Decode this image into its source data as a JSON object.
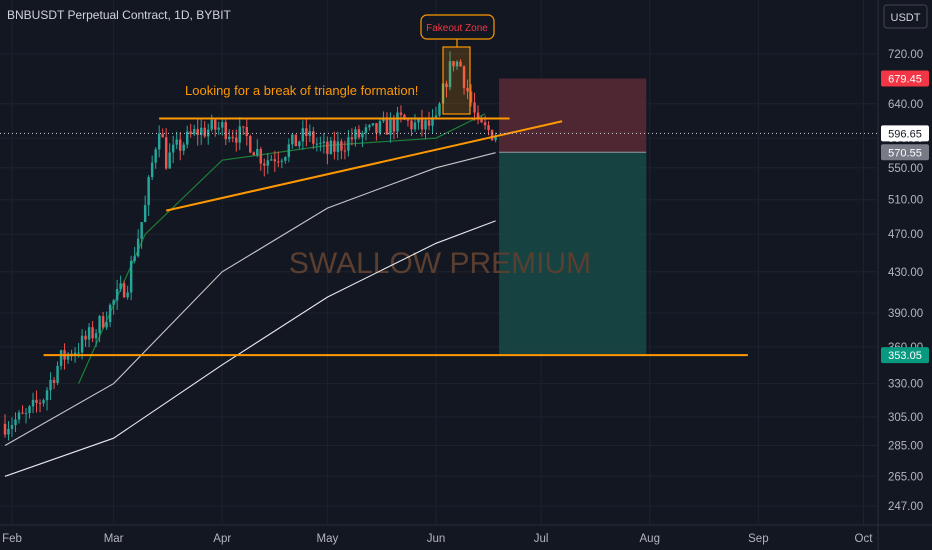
{
  "header": {
    "title": "BNBUSDT Perpetual Contract, 1D, BYBIT",
    "currency_button": "USDT"
  },
  "watermark": "SWALLOW PREMIUM",
  "annotations": {
    "triangle_note": "Looking for a break of triangle formation!",
    "fakeout_label": "Fakeout Zone"
  },
  "colors": {
    "background": "#131722",
    "up_candle": "#26a69a",
    "down_candle": "#ef5350",
    "trendline": "#ff9800",
    "ema": "#1f8a3a",
    "sma_100": "#d9d9d9",
    "sma_200": "#ffffff",
    "stop_zone": "#5b2a35",
    "target_zone": "#174a46",
    "last_price_tag": "#ffffff",
    "stop_tag": "#f23645",
    "entry_tag": "#787b86",
    "target_tag": "#089981"
  },
  "chart_data": {
    "type": "candlestick",
    "title": "BNBUSDT Perpetual Contract, 1D, BYBIT",
    "y_scale": "log",
    "ylim": [
      240,
      760
    ],
    "y_ticks": [
      "720.00",
      "640.00",
      "590.00",
      "550.00",
      "510.00",
      "470.00",
      "430.00",
      "390.00",
      "360.00",
      "330.00",
      "305.00",
      "285.00",
      "265.00",
      "247.00"
    ],
    "x_ticks": [
      "Feb",
      "Mar",
      "Apr",
      "May",
      "Jun",
      "Jul",
      "Aug",
      "Sep",
      "Oct"
    ],
    "price_tags": [
      {
        "label": "679.45",
        "role": "stop"
      },
      {
        "label": "596.65",
        "role": "last"
      },
      {
        "label": "570.55",
        "role": "entry"
      },
      {
        "label": "353.05",
        "role": "target"
      }
    ],
    "series": [
      {
        "name": "close",
        "x": [
          "2024-01-30",
          "2024-02-05",
          "2024-02-10",
          "2024-02-15",
          "2024-02-20",
          "2024-02-25",
          "2024-03-01",
          "2024-03-05",
          "2024-03-10",
          "2024-03-14",
          "2024-03-16",
          "2024-03-20",
          "2024-03-25",
          "2024-04-01",
          "2024-04-08",
          "2024-04-13",
          "2024-04-18",
          "2024-04-25",
          "2024-05-01",
          "2024-05-08",
          "2024-05-15",
          "2024-05-22",
          "2024-05-28",
          "2024-06-01",
          "2024-06-04",
          "2024-06-06",
          "2024-06-08",
          "2024-06-10",
          "2024-06-13",
          "2024-06-16",
          "2024-06-18"
        ],
        "values": [
          300,
          305,
          320,
          350,
          360,
          375,
          400,
          420,
          500,
          610,
          560,
          580,
          600,
          605,
          590,
          560,
          570,
          595,
          570,
          590,
          600,
          615,
          605,
          610,
          680,
          710,
          700,
          660,
          605,
          600,
          597
        ]
      }
    ],
    "indicators": [
      {
        "name": "EMA",
        "x": [
          "2024-02-20",
          "2024-03-10",
          "2024-04-01",
          "2024-05-01",
          "2024-06-01",
          "2024-06-15"
        ],
        "values": [
          330,
          470,
          560,
          580,
          590,
          625
        ]
      },
      {
        "name": "SMA 100",
        "x": [
          "2024-01-30",
          "2024-03-01",
          "2024-04-01",
          "2024-05-01",
          "2024-06-01",
          "2024-06-18"
        ],
        "values": [
          285,
          330,
          430,
          500,
          550,
          570
        ]
      },
      {
        "name": "SMA 200",
        "x": [
          "2024-01-30",
          "2024-03-01",
          "2024-04-01",
          "2024-05-01",
          "2024-06-01",
          "2024-06-18"
        ],
        "values": [
          265,
          290,
          345,
          405,
          460,
          485
        ]
      }
    ],
    "drawings": {
      "resistance": {
        "x": [
          "2024-03-14",
          "2024-06-22"
        ],
        "y": [
          618,
          618
        ]
      },
      "rising_support": {
        "x": [
          "2024-03-16",
          "2024-07-07"
        ],
        "y": [
          497,
          614
        ]
      },
      "support": {
        "x": [
          "2024-02-10",
          "2024-08-29"
        ],
        "y": [
          353.05,
          353.05
        ]
      },
      "position": {
        "x_start": "2024-06-19",
        "x_end": "2024-07-31",
        "stop": 679.45,
        "entry": 570.55,
        "target": 353.05
      }
    }
  }
}
